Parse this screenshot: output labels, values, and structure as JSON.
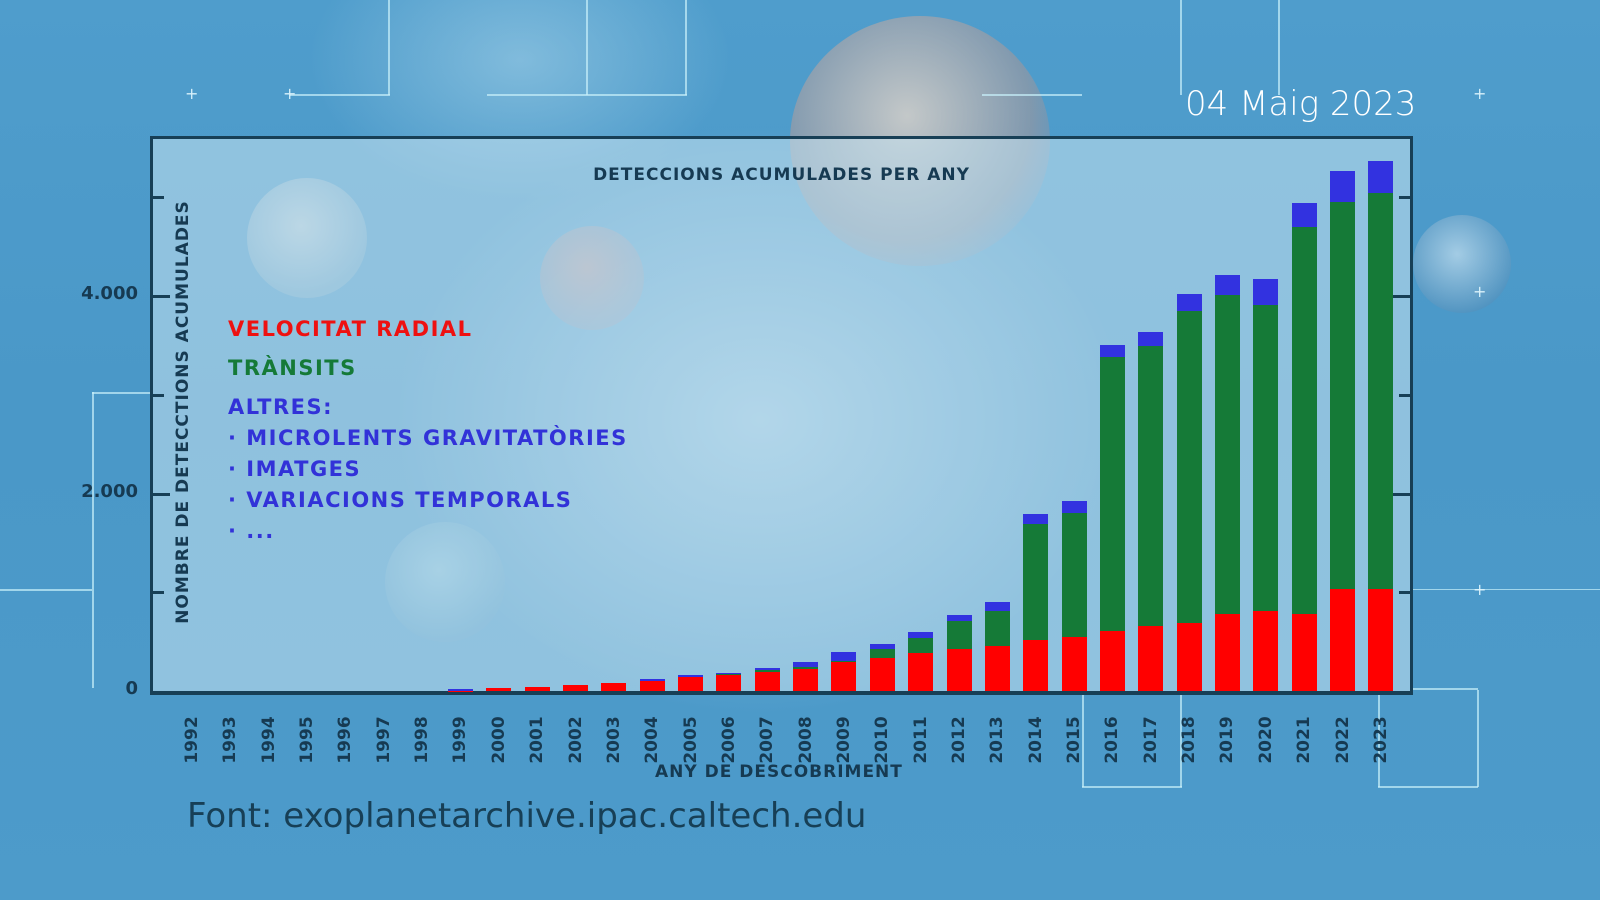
{
  "date": "04 Maig 2023",
  "source": "Font: exoplanetarchive.ipac.caltech.edu",
  "colors": {
    "radial_velocity": "#ff0000",
    "transits": "#157a37",
    "others": "#3232e0",
    "axis": "#173f56"
  },
  "legend": {
    "radial_velocity": "VELOCITAT RADIAL",
    "transits": "TRÀNSITS",
    "others_heading": "ALTRES:",
    "others_items": [
      "· MICROLENTS GRAVITATÒRIES",
      "· IMATGES",
      "· VARIACIONS TEMPORALS",
      "· ..."
    ]
  },
  "chart_data": {
    "type": "bar",
    "stacked": true,
    "title": "DETECCIONS ACUMULADES PER ANY",
    "xlabel": "ANY DE DESCOBRIMENT",
    "ylabel": "NOMBRE DE DETECCTIONS ACUMULADES",
    "ylim": [
      0,
      5600
    ],
    "yticks": [
      0,
      1000,
      2000,
      3000,
      4000,
      5000
    ],
    "ytick_labels": [
      "0",
      "",
      "2.000",
      "",
      "4.000",
      ""
    ],
    "legend_position": "upper-left",
    "grid": false,
    "categories": [
      "1992",
      "1993",
      "1994",
      "1995",
      "1996",
      "1997",
      "1998",
      "1999",
      "2000",
      "2001",
      "2002",
      "2003",
      "2004",
      "2005",
      "2006",
      "2007",
      "2008",
      "2009",
      "2010",
      "2011",
      "2012",
      "2013",
      "2014",
      "2015",
      "2016",
      "2017",
      "2018",
      "2019",
      "2020",
      "2021",
      "2022",
      "2023"
    ],
    "series": [
      {
        "name": "VELOCITAT RADIAL",
        "color": "#ff0000",
        "values": [
          0,
          0,
          0,
          0,
          0,
          0,
          0,
          5,
          30,
          45,
          60,
          85,
          100,
          140,
          165,
          190,
          225,
          295,
          330,
          380,
          430,
          460,
          520,
          550,
          610,
          660,
          690,
          780,
          810,
          780,
          1030,
          1030
        ]
      },
      {
        "name": "TRÀNSITS",
        "color": "#157a37",
        "values": [
          0,
          0,
          0,
          0,
          0,
          0,
          0,
          0,
          0,
          0,
          0,
          0,
          5,
          5,
          5,
          25,
          20,
          10,
          95,
          160,
          280,
          350,
          1170,
          1250,
          2770,
          2830,
          3160,
          3230,
          3100,
          3920,
          3920,
          4010
        ]
      },
      {
        "name": "ALTRES",
        "color": "#3232e0",
        "values": [
          0,
          0,
          0,
          0,
          0,
          0,
          0,
          15,
          0,
          0,
          0,
          0,
          20,
          15,
          15,
          20,
          50,
          90,
          50,
          60,
          60,
          90,
          100,
          120,
          120,
          150,
          170,
          200,
          260,
          240,
          320,
          330
        ]
      }
    ]
  }
}
